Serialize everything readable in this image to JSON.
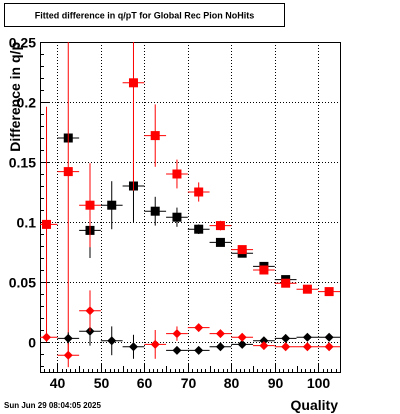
{
  "chart_data": {
    "type": "scatter",
    "title": "Fitted difference in q/pT for Global Rec Pion NoHits",
    "xlabel": "Quality",
    "ylabel": "Difference in q/p",
    "xlim": [
      36,
      105
    ],
    "ylim": [
      -0.025,
      0.25
    ],
    "x_ticks": [
      40,
      50,
      60,
      70,
      80,
      90,
      100
    ],
    "y_ticks": [
      0,
      0.05,
      0.1,
      0.15,
      0.2,
      0.25
    ],
    "y_tick_labels": [
      "0",
      "0.05",
      "0.1",
      "0.15",
      "0.2",
      "0.25"
    ],
    "grid": true,
    "x_error": 2.5,
    "series": [
      {
        "marker": "square",
        "color": "#000000",
        "points": [
          {
            "x": 42.5,
            "y": 0.17,
            "err": 0.0
          },
          {
            "x": 47.5,
            "y": 0.093,
            "err": 0.023
          },
          {
            "x": 52.5,
            "y": 0.114,
            "err": 0.02
          },
          {
            "x": 57.5,
            "y": 0.13,
            "err": 0.03
          },
          {
            "x": 62.5,
            "y": 0.109,
            "err": 0.012
          },
          {
            "x": 67.5,
            "y": 0.104,
            "err": 0.008
          },
          {
            "x": 72.5,
            "y": 0.094,
            "err": 0.004
          },
          {
            "x": 77.5,
            "y": 0.083,
            "err": 0.003
          },
          {
            "x": 82.5,
            "y": 0.074,
            "err": 0.002
          },
          {
            "x": 87.5,
            "y": 0.063,
            "err": 0.002
          },
          {
            "x": 92.5,
            "y": 0.052,
            "err": 0.002
          }
        ]
      },
      {
        "marker": "square",
        "color": "#ff0000",
        "points": [
          {
            "x": 37.5,
            "y": 0.098,
            "err": 0.098
          },
          {
            "x": 42.5,
            "y": 0.142,
            "err": 0.15
          },
          {
            "x": 47.5,
            "y": 0.114,
            "err": 0.035
          },
          {
            "x": 57.5,
            "y": 0.216,
            "err": 0.09
          },
          {
            "x": 62.5,
            "y": 0.172,
            "err": 0.026
          },
          {
            "x": 67.5,
            "y": 0.14,
            "err": 0.012
          },
          {
            "x": 72.5,
            "y": 0.125,
            "err": 0.008
          },
          {
            "x": 77.5,
            "y": 0.097,
            "err": 0.004
          },
          {
            "x": 82.5,
            "y": 0.077,
            "err": 0.003
          },
          {
            "x": 87.5,
            "y": 0.06,
            "err": 0.002
          },
          {
            "x": 92.5,
            "y": 0.049,
            "err": 0.002
          },
          {
            "x": 97.5,
            "y": 0.044,
            "err": 0.002
          },
          {
            "x": 102.5,
            "y": 0.042,
            "err": 0.002
          }
        ]
      },
      {
        "marker": "diamond",
        "color": "#000000",
        "points": [
          {
            "x": 42.5,
            "y": 0.003,
            "err": 0.005
          },
          {
            "x": 47.5,
            "y": 0.009,
            "err": 0.012
          },
          {
            "x": 52.5,
            "y": 0.001,
            "err": 0.012
          },
          {
            "x": 57.5,
            "y": -0.004,
            "err": 0.01
          },
          {
            "x": 67.5,
            "y": -0.007,
            "err": 0.003
          },
          {
            "x": 72.5,
            "y": -0.007,
            "err": 0.002
          },
          {
            "x": 77.5,
            "y": -0.004,
            "err": 0.002
          },
          {
            "x": 82.5,
            "y": -0.002,
            "err": 0.001
          },
          {
            "x": 87.5,
            "y": 0.001,
            "err": 0.001
          },
          {
            "x": 92.5,
            "y": 0.003,
            "err": 0.001
          },
          {
            "x": 97.5,
            "y": 0.004,
            "err": 0.001
          },
          {
            "x": 102.5,
            "y": 0.004,
            "err": 0.001
          }
        ]
      },
      {
        "marker": "diamond",
        "color": "#ff0000",
        "points": [
          {
            "x": 37.5,
            "y": 0.004,
            "err": 0.004
          },
          {
            "x": 42.5,
            "y": -0.011,
            "err": 0.01
          },
          {
            "x": 47.5,
            "y": 0.026,
            "err": 0.017
          },
          {
            "x": 62.5,
            "y": -0.002,
            "err": 0.012
          },
          {
            "x": 67.5,
            "y": 0.007,
            "err": 0.006
          },
          {
            "x": 72.5,
            "y": 0.012,
            "err": 0.003
          },
          {
            "x": 77.5,
            "y": 0.007,
            "err": 0.002
          },
          {
            "x": 82.5,
            "y": 0.004,
            "err": 0.001
          },
          {
            "x": 87.5,
            "y": -0.003,
            "err": 0.001
          },
          {
            "x": 92.5,
            "y": -0.004,
            "err": 0.001
          },
          {
            "x": 97.5,
            "y": -0.004,
            "err": 0.001
          },
          {
            "x": 102.5,
            "y": -0.004,
            "err": 0.001
          }
        ]
      }
    ]
  },
  "footer": {
    "timestamp": "Sun Jun 29 08:04:05 2025"
  }
}
